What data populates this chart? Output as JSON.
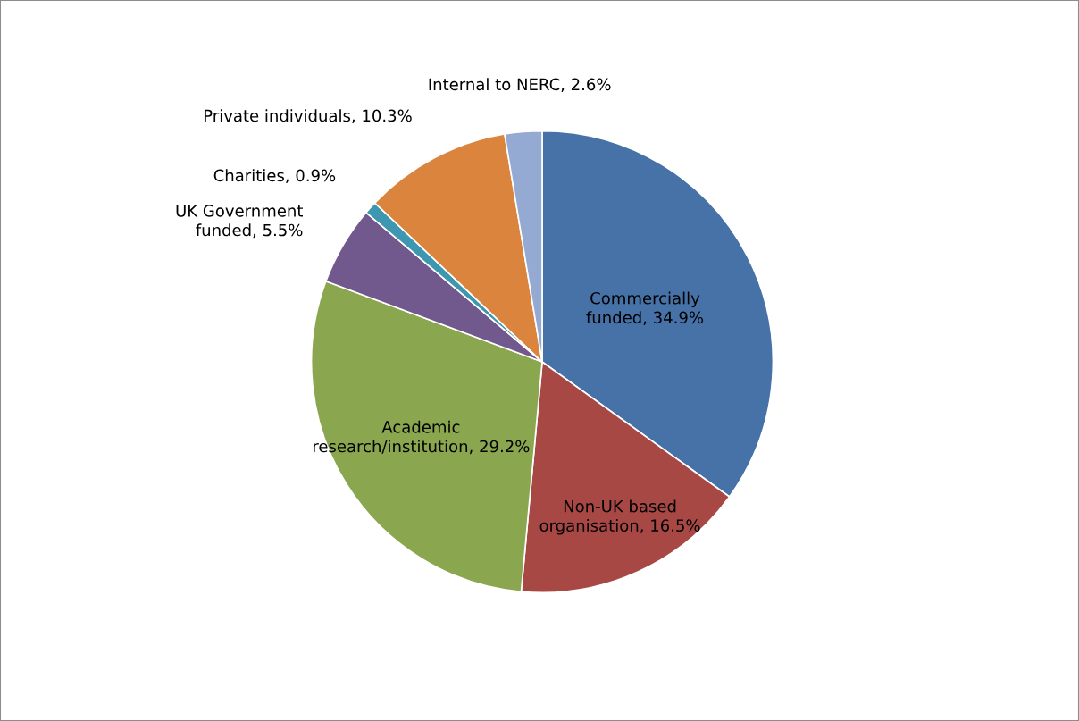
{
  "chart_data": {
    "type": "pie",
    "categories": [
      "Commercially funded",
      "Non-UK based organisation",
      "Academic research/institution",
      "UK Government funded",
      "Charities",
      "Private individuals",
      "Internal to NERC"
    ],
    "values": [
      34.9,
      16.5,
      29.2,
      5.5,
      0.9,
      10.3,
      2.6
    ],
    "value_labels": [
      "34.9%",
      "16.5%",
      "29.2%",
      "5.5%",
      "0.9%",
      "10.3%",
      "2.6%"
    ],
    "colors": [
      "#4672a8",
      "#a84845",
      "#8aa64f",
      "#71598e",
      "#3d97b0",
      "#db843d",
      "#94aad2"
    ],
    "legend": false
  }
}
